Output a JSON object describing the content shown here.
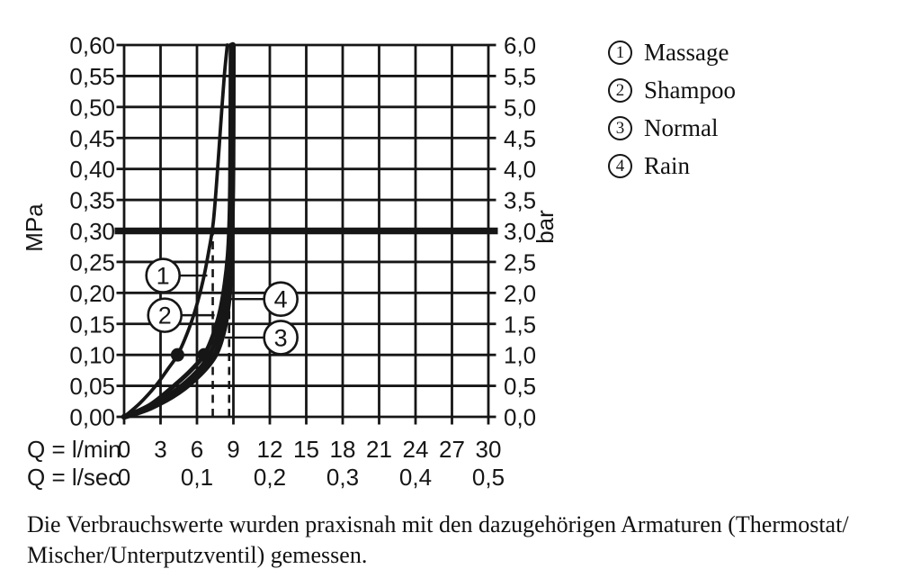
{
  "chart_data": {
    "type": "line",
    "title": "",
    "x_axis": {
      "row1_label": "Q = l/min",
      "row2_label": "Q = l/sec",
      "ticks_lmin": [
        0,
        3,
        6,
        9,
        12,
        15,
        18,
        21,
        24,
        27,
        30
      ],
      "ticks_lsec": [
        {
          "q": 0,
          "label": "0"
        },
        {
          "q": 6,
          "label": "0,1"
        },
        {
          "q": 12,
          "label": "0,2"
        },
        {
          "q": 18,
          "label": "0,3"
        },
        {
          "q": 24,
          "label": "0,4"
        },
        {
          "q": 30,
          "label": "0,5"
        }
      ],
      "xlim": [
        0,
        30
      ]
    },
    "y_axis_left": {
      "unit": "MPa",
      "ticks": [
        "0,60",
        "0,55",
        "0,50",
        "0,45",
        "0,40",
        "0,35",
        "0,30",
        "0,25",
        "0,20",
        "0,15",
        "0,10",
        "0,05",
        "0,00"
      ],
      "ylim": [
        0,
        0.6
      ],
      "step": 0.05
    },
    "y_axis_right": {
      "unit": "bar",
      "ticks": [
        "6,0",
        "5,5",
        "5,0",
        "4,5",
        "4,0",
        "3,5",
        "3,0",
        "2,5",
        "2,0",
        "1,5",
        "1,0",
        "0,5",
        "0,0"
      ]
    },
    "grid": true,
    "reference_line_MPa": 0.3,
    "dashed_flow_markers_lmin": [
      7.3,
      8.65
    ],
    "measured_points": [
      {
        "q": 4.4,
        "p": 0.1
      },
      {
        "q": 6.6,
        "p": 0.1
      }
    ],
    "series": [
      {
        "num": "4",
        "name": "Rain",
        "width": 6.5,
        "points": [
          [
            0,
            0
          ],
          [
            2.2,
            0.015
          ],
          [
            4.5,
            0.04
          ],
          [
            6.3,
            0.07
          ],
          [
            7.5,
            0.1
          ],
          [
            8.2,
            0.14
          ],
          [
            8.6,
            0.19
          ],
          [
            8.75,
            0.24
          ],
          [
            8.85,
            0.3
          ],
          [
            8.92,
            0.4
          ],
          [
            8.94,
            0.5
          ],
          [
            8.95,
            0.6
          ]
        ]
      },
      {
        "num": "3",
        "name": "Normal",
        "width": 5,
        "points": [
          [
            0,
            0
          ],
          [
            2.3,
            0.018
          ],
          [
            4.6,
            0.048
          ],
          [
            6.4,
            0.082
          ],
          [
            7.4,
            0.115
          ],
          [
            8.0,
            0.155
          ],
          [
            8.4,
            0.2
          ],
          [
            8.6,
            0.25
          ],
          [
            8.72,
            0.3
          ],
          [
            8.82,
            0.4
          ],
          [
            8.84,
            0.5
          ],
          [
            8.85,
            0.6
          ]
        ]
      },
      {
        "num": "2",
        "name": "Shampoo",
        "width": 5,
        "points": [
          [
            0,
            0
          ],
          [
            2.2,
            0.02
          ],
          [
            4.4,
            0.055
          ],
          [
            5.6,
            0.077
          ],
          [
            6.6,
            0.1
          ],
          [
            7.3,
            0.13
          ],
          [
            7.9,
            0.17
          ],
          [
            8.3,
            0.215
          ],
          [
            8.55,
            0.26
          ],
          [
            8.68,
            0.31
          ],
          [
            8.75,
            0.38
          ],
          [
            8.78,
            0.48
          ],
          [
            8.8,
            0.6
          ]
        ]
      },
      {
        "num": "1",
        "name": "Massage",
        "width": 3.8,
        "points": [
          [
            0,
            0
          ],
          [
            1.3,
            0.022
          ],
          [
            2.6,
            0.05
          ],
          [
            3.6,
            0.077
          ],
          [
            4.4,
            0.1
          ],
          [
            5.2,
            0.135
          ],
          [
            5.9,
            0.175
          ],
          [
            6.5,
            0.22
          ],
          [
            6.95,
            0.265
          ],
          [
            7.35,
            0.315
          ],
          [
            7.7,
            0.4
          ],
          [
            7.95,
            0.47
          ],
          [
            8.25,
            0.55
          ],
          [
            8.5,
            0.6
          ]
        ]
      }
    ],
    "callouts": [
      {
        "num": "1",
        "q": 3.2,
        "p": 0.228,
        "end_q": 6.85
      },
      {
        "num": "2",
        "q": 3.35,
        "p": 0.164,
        "end_q": 7.45
      },
      {
        "num": "4",
        "q": 12.9,
        "p": 0.19,
        "end_q": 8.35
      },
      {
        "num": "3",
        "q": 12.9,
        "p": 0.128,
        "end_q": 8.3
      }
    ],
    "legend": [
      {
        "num": "1",
        "label": "Massage"
      },
      {
        "num": "2",
        "label": "Shampoo"
      },
      {
        "num": "3",
        "label": "Normal"
      },
      {
        "num": "4",
        "label": "Rain"
      }
    ],
    "legend_position": "right"
  },
  "caption": {
    "line1": "Die Verbrauchswerte wurden praxisnah mit den dazugehörigen Armaturen (Thermostat/",
    "line2": "Mischer/Unterputzventil) gemessen."
  },
  "colors": {
    "ink": "#161616",
    "background": "#ffffff"
  }
}
